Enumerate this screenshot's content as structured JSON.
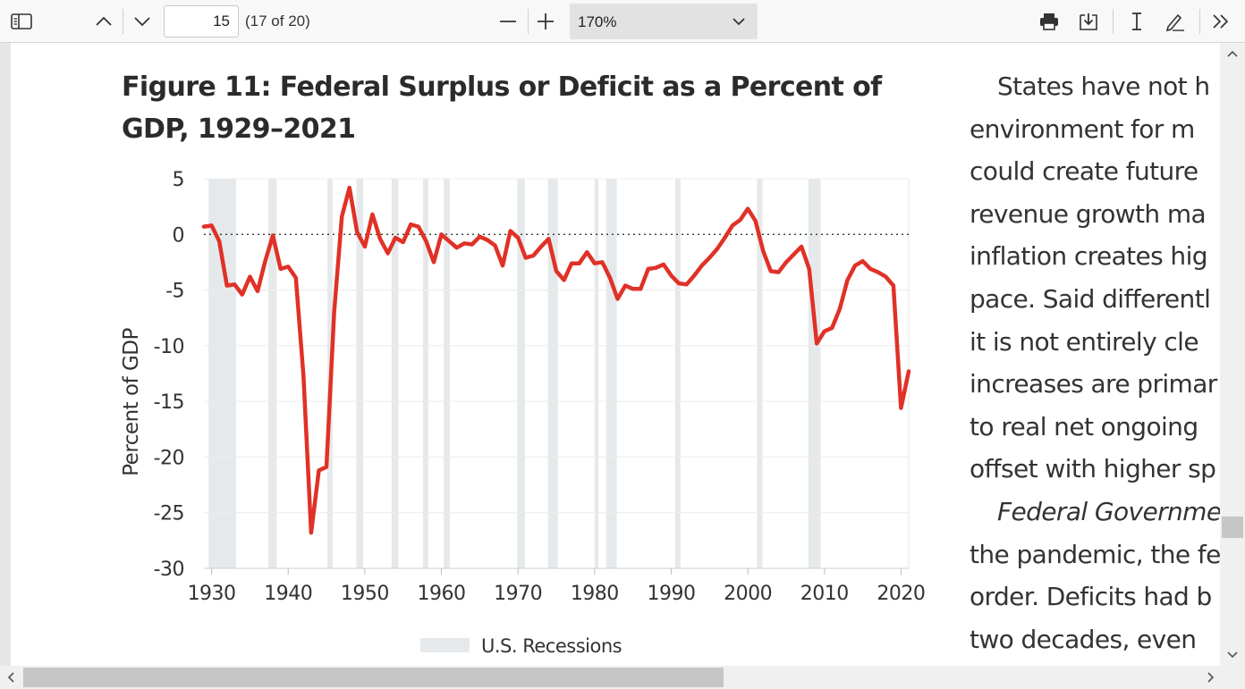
{
  "toolbar": {
    "page_number": "15",
    "page_count": "(17 of 20)",
    "zoom": "170%"
  },
  "document": {
    "figure_title": "Figure 11: Federal Surplus or Deficit as a Percent of GDP, 1929–2021",
    "body_lines": [
      "States have not h",
      "environment for m",
      "could create future",
      "revenue growth ma",
      "inflation creates hig",
      "pace. Said differentl",
      "it is not entirely cle",
      "increases are primar",
      "to real net ongoing",
      "offset with higher sp",
      "Federal Governme",
      "the pandemic, the fe",
      "order. Deficits had b",
      "two decades, even"
    ]
  },
  "chart_data": {
    "type": "line",
    "title": "Figure 11: Federal Surplus or Deficit as a Percent of GDP, 1929–2021",
    "xlabel": "",
    "ylabel": "Percent of GDP",
    "xlim": [
      1929,
      2021
    ],
    "ylim": [
      -30,
      5
    ],
    "x_ticks": [
      1930,
      1940,
      1950,
      1960,
      1970,
      1980,
      1990,
      2000,
      2010,
      2020
    ],
    "y_ticks": [
      5,
      0,
      -5,
      -10,
      -15,
      -20,
      -25,
      -30
    ],
    "y_tick_labels": [
      "5",
      "0",
      "-5",
      "-10",
      "-15",
      "-20",
      "-25",
      "-30"
    ],
    "zero_line": "dotted",
    "grid": true,
    "line_color": "#e03127",
    "recession_color": "#e6e9eb",
    "legend": {
      "position": "bottom-center",
      "label": "U.S. Recessions"
    },
    "recessions": [
      [
        1929.6,
        1933.2
      ],
      [
        1937.4,
        1938.5
      ],
      [
        1945.1,
        1945.8
      ],
      [
        1948.9,
        1949.8
      ],
      [
        1953.5,
        1954.4
      ],
      [
        1957.6,
        1958.3
      ],
      [
        1960.3,
        1961.1
      ],
      [
        1969.9,
        1970.9
      ],
      [
        1973.9,
        1975.2
      ],
      [
        1980.0,
        1980.5
      ],
      [
        1981.5,
        1982.9
      ],
      [
        1990.5,
        1991.2
      ],
      [
        2001.2,
        2001.9
      ],
      [
        2007.9,
        2009.5
      ]
    ],
    "series": [
      {
        "values": [
          [
            1929,
            0.7
          ],
          [
            1930,
            0.8
          ],
          [
            1931,
            -0.6
          ],
          [
            1932,
            -4.6
          ],
          [
            1933,
            -4.5
          ],
          [
            1934,
            -5.4
          ],
          [
            1935,
            -3.8
          ],
          [
            1936,
            -5.1
          ],
          [
            1937,
            -2.4
          ],
          [
            1938,
            -0.1
          ],
          [
            1939,
            -3.1
          ],
          [
            1940,
            -2.9
          ],
          [
            1941,
            -3.9
          ],
          [
            1942,
            -12.7
          ],
          [
            1943,
            -26.8
          ],
          [
            1944,
            -21.2
          ],
          [
            1945,
            -20.9
          ],
          [
            1946,
            -7.0
          ],
          [
            1947,
            1.6
          ],
          [
            1948,
            4.2
          ],
          [
            1949,
            0.2
          ],
          [
            1950,
            -1.1
          ],
          [
            1951,
            1.8
          ],
          [
            1952,
            -0.4
          ],
          [
            1953,
            -1.7
          ],
          [
            1954,
            -0.3
          ],
          [
            1955,
            -0.7
          ],
          [
            1956,
            0.9
          ],
          [
            1957,
            0.7
          ],
          [
            1958,
            -0.6
          ],
          [
            1959,
            -2.5
          ],
          [
            1960,
            0.0
          ],
          [
            1961,
            -0.6
          ],
          [
            1962,
            -1.2
          ],
          [
            1963,
            -0.8
          ],
          [
            1964,
            -0.9
          ],
          [
            1965,
            -0.2
          ],
          [
            1966,
            -0.5
          ],
          [
            1967,
            -1.0
          ],
          [
            1968,
            -2.8
          ],
          [
            1969,
            0.3
          ],
          [
            1970,
            -0.3
          ],
          [
            1971,
            -2.1
          ],
          [
            1972,
            -1.9
          ],
          [
            1973,
            -1.1
          ],
          [
            1974,
            -0.4
          ],
          [
            1975,
            -3.3
          ],
          [
            1976,
            -4.1
          ],
          [
            1977,
            -2.6
          ],
          [
            1978,
            -2.6
          ],
          [
            1979,
            -1.6
          ],
          [
            1980,
            -2.6
          ],
          [
            1981,
            -2.5
          ],
          [
            1982,
            -3.9
          ],
          [
            1983,
            -5.8
          ],
          [
            1984,
            -4.6
          ],
          [
            1985,
            -4.9
          ],
          [
            1986,
            -4.9
          ],
          [
            1987,
            -3.1
          ],
          [
            1988,
            -3.0
          ],
          [
            1989,
            -2.7
          ],
          [
            1990,
            -3.7
          ],
          [
            1991,
            -4.4
          ],
          [
            1992,
            -4.5
          ],
          [
            1993,
            -3.7
          ],
          [
            1994,
            -2.8
          ],
          [
            1995,
            -2.1
          ],
          [
            1996,
            -1.3
          ],
          [
            1997,
            -0.3
          ],
          [
            1998,
            0.8
          ],
          [
            1999,
            1.3
          ],
          [
            2000,
            2.3
          ],
          [
            2001,
            1.2
          ],
          [
            2002,
            -1.5
          ],
          [
            2003,
            -3.3
          ],
          [
            2004,
            -3.4
          ],
          [
            2005,
            -2.5
          ],
          [
            2006,
            -1.8
          ],
          [
            2007,
            -1.1
          ],
          [
            2008,
            -3.1
          ],
          [
            2009,
            -9.8
          ],
          [
            2010,
            -8.7
          ],
          [
            2011,
            -8.4
          ],
          [
            2012,
            -6.7
          ],
          [
            2013,
            -4.1
          ],
          [
            2014,
            -2.8
          ],
          [
            2015,
            -2.4
          ],
          [
            2016,
            -3.1
          ],
          [
            2017,
            -3.4
          ],
          [
            2018,
            -3.8
          ],
          [
            2019,
            -4.6
          ],
          [
            2020,
            -15.6
          ],
          [
            2021,
            -12.3
          ]
        ]
      }
    ]
  }
}
